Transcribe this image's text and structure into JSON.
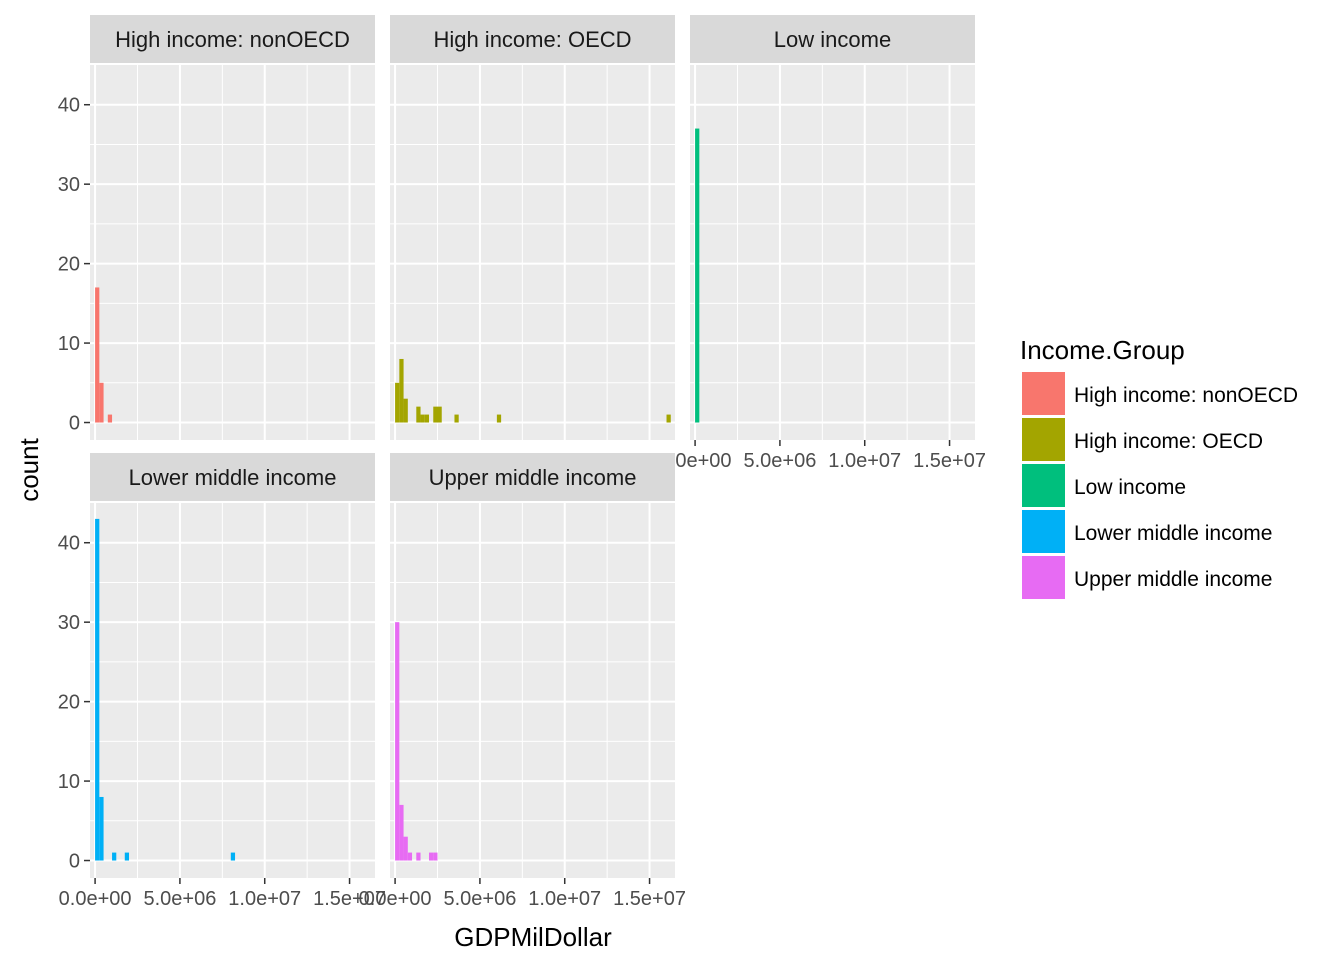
{
  "chart_data": {
    "type": "bar",
    "subtype": "faceted-histogram",
    "xlabel": "GDPMilDollar",
    "ylabel": "count",
    "x_tick_labels": [
      "0.0e+00",
      "5.0e+06",
      "1.0e+07",
      "1.5e+07"
    ],
    "x_tick_values": [
      0,
      5000000,
      10000000,
      15000000
    ],
    "y_tick_labels": [
      "0",
      "10",
      "20",
      "30",
      "40"
    ],
    "y_tick_values": [
      0,
      10,
      20,
      30,
      40
    ],
    "xlim": [
      -300000,
      16500000
    ],
    "ylim": [
      -2.2,
      45
    ],
    "bin_width": 250000,
    "grid": true,
    "legend": {
      "title": "Income.Group",
      "position": "right",
      "entries": [
        {
          "label": "High income: nonOECD",
          "color": "#F8766D"
        },
        {
          "label": "High income: OECD",
          "color": "#A3A500"
        },
        {
          "label": "Low income",
          "color": "#00BF7D"
        },
        {
          "label": "Lower middle income",
          "color": "#00B0F6"
        },
        {
          "label": "Upper middle income",
          "color": "#E76BF3"
        }
      ]
    },
    "facets": [
      {
        "title": "High income: nonOECD",
        "color": "#F8766D",
        "bins": [
          {
            "x": 0,
            "count": 17
          },
          {
            "x": 250000,
            "count": 5
          },
          {
            "x": 750000,
            "count": 1
          }
        ]
      },
      {
        "title": "High income: OECD",
        "color": "#A3A500",
        "bins": [
          {
            "x": 0,
            "count": 5
          },
          {
            "x": 250000,
            "count": 8
          },
          {
            "x": 500000,
            "count": 3
          },
          {
            "x": 1250000,
            "count": 2
          },
          {
            "x": 1500000,
            "count": 1
          },
          {
            "x": 1750000,
            "count": 1
          },
          {
            "x": 2250000,
            "count": 2
          },
          {
            "x": 2500000,
            "count": 2
          },
          {
            "x": 3500000,
            "count": 1
          },
          {
            "x": 6000000,
            "count": 1
          },
          {
            "x": 16000000,
            "count": 1
          }
        ]
      },
      {
        "title": "Low income",
        "color": "#00BF7D",
        "bins": [
          {
            "x": 0,
            "count": 37
          }
        ]
      },
      {
        "title": "Lower middle income",
        "color": "#00B0F6",
        "bins": [
          {
            "x": 0,
            "count": 43
          },
          {
            "x": 250000,
            "count": 8
          },
          {
            "x": 1000000,
            "count": 1
          },
          {
            "x": 1750000,
            "count": 1
          },
          {
            "x": 8000000,
            "count": 1
          }
        ]
      },
      {
        "title": "Upper middle income",
        "color": "#E76BF3",
        "bins": [
          {
            "x": 0,
            "count": 30
          },
          {
            "x": 250000,
            "count": 7
          },
          {
            "x": 500000,
            "count": 3
          },
          {
            "x": 750000,
            "count": 1
          },
          {
            "x": 1250000,
            "count": 1
          },
          {
            "x": 2000000,
            "count": 1
          },
          {
            "x": 2250000,
            "count": 1
          }
        ]
      }
    ]
  },
  "colors": {
    "panel_background": "#EBEBEB",
    "strip_background": "#D9D9D9",
    "grid": "#FFFFFF"
  }
}
